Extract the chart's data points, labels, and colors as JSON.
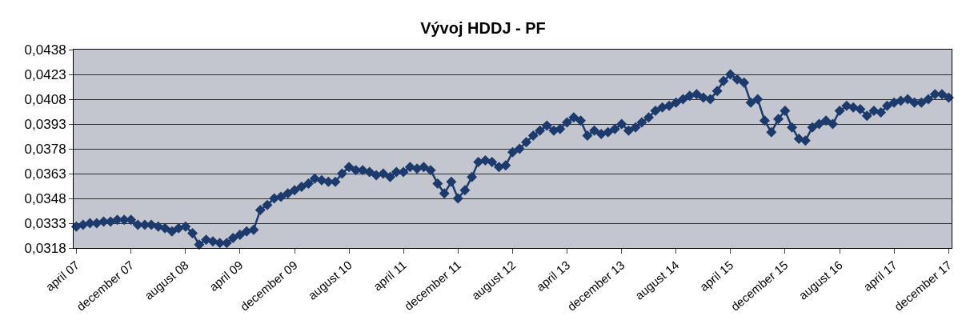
{
  "chart_data": {
    "type": "line",
    "title": "Vývoj HDDJ - PF",
    "x": [
      "2007-04",
      "2007-05",
      "2007-06",
      "2007-07",
      "2007-08",
      "2007-09",
      "2007-10",
      "2007-11",
      "2007-12",
      "2008-01",
      "2008-02",
      "2008-03",
      "2008-04",
      "2008-05",
      "2008-06",
      "2008-07",
      "2008-08",
      "2008-09",
      "2008-10",
      "2008-11",
      "2008-12",
      "2009-01",
      "2009-02",
      "2009-03",
      "2009-04",
      "2009-05",
      "2009-06",
      "2009-07",
      "2009-08",
      "2009-09",
      "2009-10",
      "2009-11",
      "2009-12",
      "2010-01",
      "2010-02",
      "2010-03",
      "2010-04",
      "2010-05",
      "2010-06",
      "2010-07",
      "2010-08",
      "2010-09",
      "2010-10",
      "2010-11",
      "2010-12",
      "2011-01",
      "2011-02",
      "2011-03",
      "2011-04",
      "2011-05",
      "2011-06",
      "2011-07",
      "2011-08",
      "2011-09",
      "2011-10",
      "2011-11",
      "2011-12",
      "2012-01",
      "2012-02",
      "2012-03",
      "2012-04",
      "2012-05",
      "2012-06",
      "2012-07",
      "2012-08",
      "2012-09",
      "2012-10",
      "2012-11",
      "2012-12",
      "2013-01",
      "2013-02",
      "2013-03",
      "2013-04",
      "2013-05",
      "2013-06",
      "2013-07",
      "2013-08",
      "2013-09",
      "2013-10",
      "2013-11",
      "2013-12",
      "2014-01",
      "2014-02",
      "2014-03",
      "2014-04",
      "2014-05",
      "2014-06",
      "2014-07",
      "2014-08",
      "2014-09",
      "2014-10",
      "2014-11",
      "2014-12",
      "2015-01",
      "2015-02",
      "2015-03",
      "2015-04",
      "2015-05",
      "2015-06",
      "2015-07",
      "2015-08",
      "2015-09",
      "2015-10",
      "2015-11",
      "2015-12",
      "2016-01",
      "2016-02",
      "2016-03",
      "2016-04",
      "2016-05",
      "2016-06",
      "2016-07",
      "2016-08",
      "2016-09",
      "2016-10",
      "2016-11",
      "2016-12",
      "2017-01",
      "2017-02",
      "2017-03",
      "2017-04",
      "2017-05",
      "2017-06",
      "2017-07",
      "2017-08",
      "2017-09",
      "2017-10",
      "2017-11",
      "2017-12"
    ],
    "series": [
      {
        "color": "#1c3a6b",
        "values": [
          0.0331,
          0.0332,
          0.0333,
          0.0333,
          0.0334,
          0.0334,
          0.0335,
          0.0335,
          0.0335,
          0.0332,
          0.0332,
          0.0332,
          0.0331,
          0.033,
          0.0328,
          0.033,
          0.0331,
          0.0327,
          0.032,
          0.0323,
          0.0322,
          0.0321,
          0.0321,
          0.0324,
          0.0326,
          0.0328,
          0.0329,
          0.0341,
          0.0344,
          0.0348,
          0.0349,
          0.0351,
          0.0353,
          0.0355,
          0.0357,
          0.036,
          0.0359,
          0.0358,
          0.0358,
          0.0363,
          0.0367,
          0.0365,
          0.0365,
          0.0364,
          0.0362,
          0.0363,
          0.0361,
          0.0364,
          0.0364,
          0.0367,
          0.0366,
          0.0367,
          0.0365,
          0.0357,
          0.0351,
          0.0358,
          0.0348,
          0.0353,
          0.0361,
          0.037,
          0.0371,
          0.037,
          0.0367,
          0.0368,
          0.0376,
          0.0378,
          0.0382,
          0.0386,
          0.0389,
          0.0392,
          0.0389,
          0.039,
          0.0394,
          0.0397,
          0.0395,
          0.0386,
          0.0389,
          0.0387,
          0.0388,
          0.039,
          0.0393,
          0.0389,
          0.0391,
          0.0394,
          0.0397,
          0.0401,
          0.0403,
          0.0404,
          0.0406,
          0.0408,
          0.041,
          0.0411,
          0.0409,
          0.0408,
          0.0413,
          0.0419,
          0.0423,
          0.042,
          0.0418,
          0.0406,
          0.0408,
          0.0395,
          0.0388,
          0.0396,
          0.0401,
          0.0391,
          0.0384,
          0.0383,
          0.0391,
          0.0393,
          0.0395,
          0.0393,
          0.0401,
          0.0404,
          0.0403,
          0.0402,
          0.0398,
          0.0401,
          0.04,
          0.0404,
          0.0406,
          0.0407,
          0.0408,
          0.0406,
          0.0406,
          0.0408,
          0.0411,
          0.0411,
          0.0409
        ]
      }
    ],
    "xlim": [
      "2007-03-20",
      "2017-12-14"
    ],
    "xticks": [
      {
        "value": "2007-04",
        "label": "april 07"
      },
      {
        "value": "2007-12",
        "label": "december 07"
      },
      {
        "value": "2008-08",
        "label": "august 08"
      },
      {
        "value": "2009-04",
        "label": "april 09"
      },
      {
        "value": "2009-12",
        "label": "december 09"
      },
      {
        "value": "2010-08",
        "label": "august 10"
      },
      {
        "value": "2011-04",
        "label": "april 11"
      },
      {
        "value": "2011-12",
        "label": "december 11"
      },
      {
        "value": "2012-08",
        "label": "august 12"
      },
      {
        "value": "2013-04",
        "label": "april 13"
      },
      {
        "value": "2013-12",
        "label": "december 13"
      },
      {
        "value": "2014-08",
        "label": "august 14"
      },
      {
        "value": "2015-04",
        "label": "april 15"
      },
      {
        "value": "2015-12",
        "label": "december 15"
      },
      {
        "value": "2016-08",
        "label": "august 16"
      },
      {
        "value": "2017-04",
        "label": "april 17"
      },
      {
        "value": "2017-12",
        "label": "december 17"
      }
    ],
    "ylim": [
      0.0318,
      0.0438
    ],
    "yticks": [
      {
        "value": 0.0318,
        "label": "0,0318"
      },
      {
        "value": 0.0333,
        "label": "0,0333"
      },
      {
        "value": 0.0348,
        "label": "0,0348"
      },
      {
        "value": 0.0363,
        "label": "0,0363"
      },
      {
        "value": 0.0378,
        "label": "0,0378"
      },
      {
        "value": 0.0393,
        "label": "0,0393"
      },
      {
        "value": 0.0408,
        "label": "0,0408"
      },
      {
        "value": 0.0423,
        "label": "0,0423"
      },
      {
        "value": 0.0438,
        "label": "0,0438"
      }
    ],
    "grid": "y",
    "legend": false,
    "marker": "diamond",
    "line_style": "solid"
  }
}
